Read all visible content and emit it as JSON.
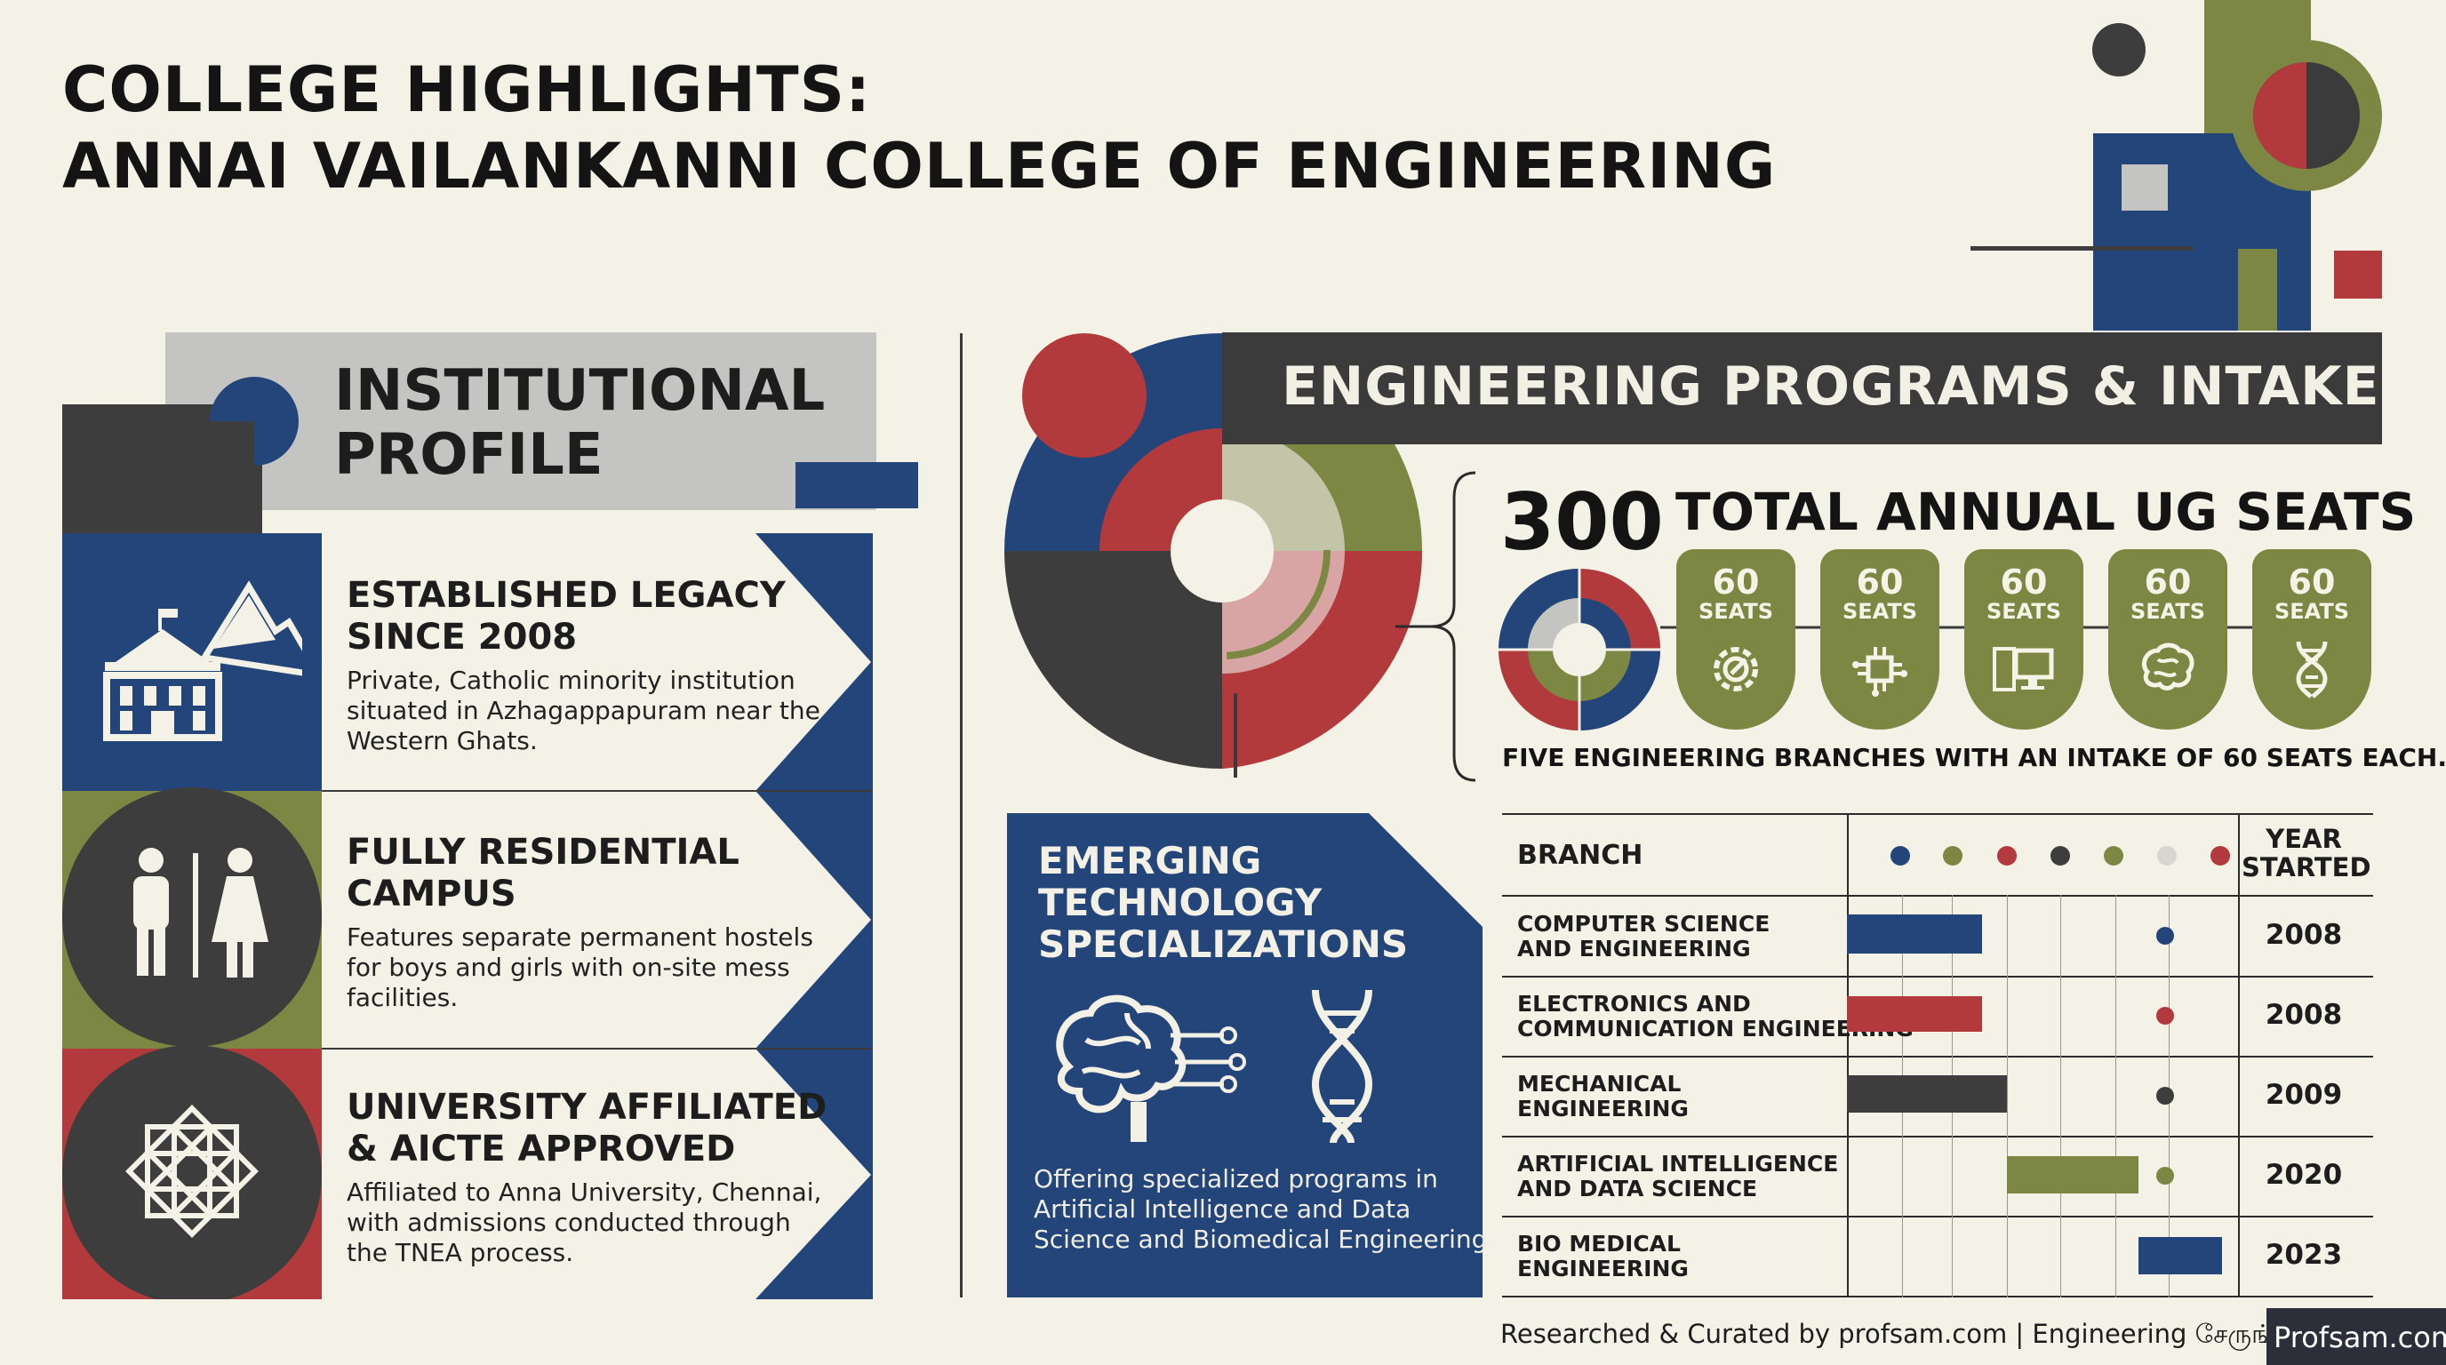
{
  "title": {
    "line1": "COLLEGE HIGHLIGHTS:",
    "line2": "ANNAI VAILANKANNI COLLEGE OF ENGINEERING"
  },
  "institutional_profile": {
    "heading_line1": "INSTITUTIONAL",
    "heading_line2": "PROFILE",
    "cards": [
      {
        "title_line1": "ESTABLISHED LEGACY",
        "title_line2": "SINCE 2008",
        "desc_line1": "Private, Catholic minority institution",
        "desc_line2": "situated in Azhagappapuram near the",
        "desc_line3": "Western Ghats.",
        "icon": "campus-building-icon"
      },
      {
        "title_line1": "FULLY RESIDENTIAL",
        "title_line2": "CAMPUS",
        "desc_line1": "Features separate permanent hostels",
        "desc_line2": "for boys and girls with on-site mess",
        "desc_line3": "facilities.",
        "icon": "male-female-icon"
      },
      {
        "title_line1": "UNIVERSITY AFFILIATED",
        "title_line2": "& AICTE APPROVED",
        "desc_line1": "Affiliated to Anna University, Chennai,",
        "desc_line2": "with admissions conducted through",
        "desc_line3": "the TNEA process.",
        "icon": "geometric-seal-icon"
      }
    ]
  },
  "programs": {
    "heading": "ENGINEERING PROGRAMS & INTAKE",
    "total_number": "300",
    "total_label": "TOTAL ANNUAL UG SEATS",
    "seat_badges": [
      {
        "num": "60",
        "unit": "SEATS",
        "icon": "gear-icon"
      },
      {
        "num": "60",
        "unit": "SEATS",
        "icon": "circuit-chip-icon"
      },
      {
        "num": "60",
        "unit": "SEATS",
        "icon": "computer-icon"
      },
      {
        "num": "60",
        "unit": "SEATS",
        "icon": "brain-icon"
      },
      {
        "num": "60",
        "unit": "SEATS",
        "icon": "dna-icon"
      }
    ],
    "branches_note": "FIVE ENGINEERING BRANCHES WITH AN INTAKE OF 60 SEATS EACH."
  },
  "emerging": {
    "title_line1": "EMERGING",
    "title_line2": "TECHNOLOGY",
    "title_line3": "SPECIALIZATIONS",
    "desc_line1": "Offering specialized programs in",
    "desc_line2": "Artificial Intelligence and Data",
    "desc_line3": "Science and Biomedical Engineering."
  },
  "table": {
    "col_branch": "BRANCH",
    "col_year_line1": "YEAR",
    "col_year_line2": "STARTED",
    "rows": [
      {
        "line1": "COMPUTER SCIENCE",
        "line2": "AND ENGINEERING",
        "year": "2008",
        "color": "#23457a"
      },
      {
        "line1": "ELECTRONICS AND",
        "line2": "COMMUNICATION ENGINEERING",
        "year": "2008",
        "color": "#b23a3c"
      },
      {
        "line1": "MECHANICAL",
        "line2": "ENGINEERING",
        "year": "2009",
        "color": "#3d3d3d"
      },
      {
        "line1": "ARTIFICIAL INTELLIGENCE",
        "line2": "AND DATA SCIENCE",
        "year": "2020",
        "color": "#7b8742"
      },
      {
        "line1": "BIO MEDICAL",
        "line2": "ENGINEERING",
        "year": "2023",
        "color": "#23457a"
      }
    ],
    "legend_colors": [
      "#23457a",
      "#7b8742",
      "#b23a3c",
      "#3d3d3d",
      "#7b8742",
      "#d8d6ce",
      "#b23a3c"
    ]
  },
  "footer": {
    "credit": "Researched & Curated by profsam.com | Engineering சேருங்க",
    "logo_text": "Profsam.com"
  },
  "colors": {
    "navy": "#23457a",
    "olive": "#7b8742",
    "red": "#b23a3c",
    "charcoal": "#3d3d3d",
    "cream": "#f4f1e6"
  }
}
